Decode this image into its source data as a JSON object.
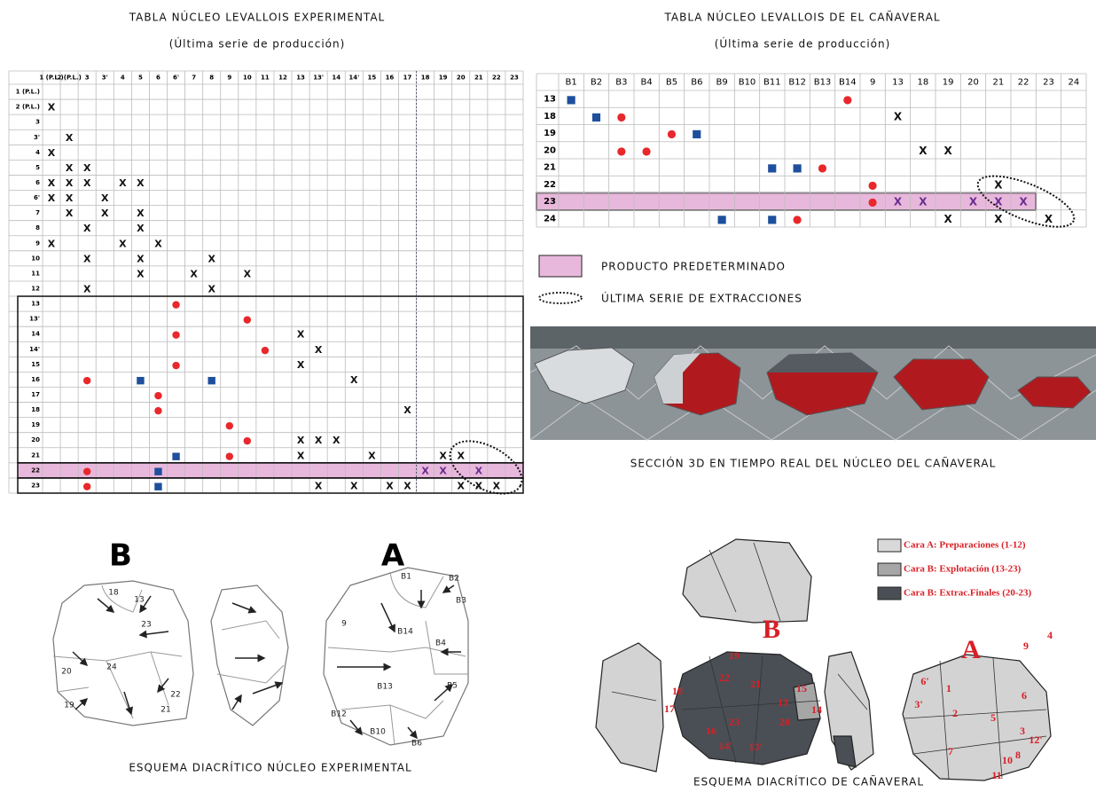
{
  "left": {
    "title": "TABLA NÚCLEO LEVALLOIS EXPERIMENTAL",
    "subtitle": "(Última serie de producción)",
    "columns": [
      "1 (P.L.)",
      "2 (P.L.)",
      "3",
      "3'",
      "4",
      "5",
      "6",
      "6'",
      "7",
      "8",
      "9",
      "10",
      "11",
      "12",
      "13",
      "13'",
      "14",
      "14'",
      "15",
      "16",
      "17",
      "18",
      "19",
      "20",
      "21",
      "22",
      "23"
    ],
    "rows": [
      {
        "label": "1 (P.L.)",
        "cells": [
          null,
          null,
          null,
          null,
          null,
          null,
          null,
          null,
          null,
          null,
          null,
          null,
          null,
          null,
          null,
          null,
          null,
          null,
          null,
          null,
          null,
          null,
          null,
          null,
          null,
          null,
          null
        ]
      },
      {
        "label": "2 (P.L.)",
        "cells": [
          "X",
          null,
          null,
          null,
          null,
          null,
          null,
          null,
          null,
          null,
          null,
          null,
          null,
          null,
          null,
          null,
          null,
          null,
          null,
          null,
          null,
          null,
          null,
          null,
          null,
          null,
          null
        ]
      },
      {
        "label": "3",
        "cells": [
          null,
          null,
          null,
          null,
          null,
          null,
          null,
          null,
          null,
          null,
          null,
          null,
          null,
          null,
          null,
          null,
          null,
          null,
          null,
          null,
          null,
          null,
          null,
          null,
          null,
          null,
          null
        ]
      },
      {
        "label": "3'",
        "cells": [
          null,
          "X",
          null,
          null,
          null,
          null,
          null,
          null,
          null,
          null,
          null,
          null,
          null,
          null,
          null,
          null,
          null,
          null,
          null,
          null,
          null,
          null,
          null,
          null,
          null,
          null,
          null
        ]
      },
      {
        "label": "4",
        "cells": [
          "X",
          null,
          null,
          null,
          null,
          null,
          null,
          null,
          null,
          null,
          null,
          null,
          null,
          null,
          null,
          null,
          null,
          null,
          null,
          null,
          null,
          null,
          null,
          null,
          null,
          null,
          null
        ]
      },
      {
        "label": "5",
        "cells": [
          null,
          "X",
          "X",
          null,
          null,
          null,
          null,
          null,
          null,
          null,
          null,
          null,
          null,
          null,
          null,
          null,
          null,
          null,
          null,
          null,
          null,
          null,
          null,
          null,
          null,
          null,
          null
        ]
      },
      {
        "label": "6",
        "cells": [
          "X",
          "X",
          "X",
          null,
          "X",
          "X",
          null,
          null,
          null,
          null,
          null,
          null,
          null,
          null,
          null,
          null,
          null,
          null,
          null,
          null,
          null,
          null,
          null,
          null,
          null,
          null,
          null
        ]
      },
      {
        "label": "6'",
        "cells": [
          "X",
          "X",
          null,
          "X",
          null,
          null,
          null,
          null,
          null,
          null,
          null,
          null,
          null,
          null,
          null,
          null,
          null,
          null,
          null,
          null,
          null,
          null,
          null,
          null,
          null,
          null,
          null
        ]
      },
      {
        "label": "7",
        "cells": [
          null,
          "X",
          null,
          "X",
          null,
          "X",
          null,
          null,
          null,
          null,
          null,
          null,
          null,
          null,
          null,
          null,
          null,
          null,
          null,
          null,
          null,
          null,
          null,
          null,
          null,
          null,
          null
        ]
      },
      {
        "label": "8",
        "cells": [
          null,
          null,
          "X",
          null,
          null,
          "X",
          null,
          null,
          null,
          null,
          null,
          null,
          null,
          null,
          null,
          null,
          null,
          null,
          null,
          null,
          null,
          null,
          null,
          null,
          null,
          null,
          null
        ]
      },
      {
        "label": "9",
        "cells": [
          "X",
          null,
          null,
          null,
          "X",
          null,
          "X",
          null,
          null,
          null,
          null,
          null,
          null,
          null,
          null,
          null,
          null,
          null,
          null,
          null,
          null,
          null,
          null,
          null,
          null,
          null,
          null
        ]
      },
      {
        "label": "10",
        "cells": [
          null,
          null,
          "X",
          null,
          null,
          "X",
          null,
          null,
          null,
          "X",
          null,
          null,
          null,
          null,
          null,
          null,
          null,
          null,
          null,
          null,
          null,
          null,
          null,
          null,
          null,
          null,
          null
        ]
      },
      {
        "label": "11",
        "cells": [
          null,
          null,
          null,
          null,
          null,
          "X",
          null,
          null,
          "X",
          null,
          null,
          "X",
          null,
          null,
          null,
          null,
          null,
          null,
          null,
          null,
          null,
          null,
          null,
          null,
          null,
          null,
          null
        ]
      },
      {
        "label": "12",
        "cells": [
          null,
          null,
          "X",
          null,
          null,
          null,
          null,
          null,
          null,
          "X",
          null,
          null,
          null,
          null,
          null,
          null,
          null,
          null,
          null,
          null,
          null,
          null,
          null,
          null,
          null,
          null,
          null
        ]
      },
      {
        "label": "13",
        "cells": [
          null,
          null,
          null,
          null,
          null,
          null,
          null,
          "●",
          null,
          null,
          null,
          null,
          null,
          null,
          null,
          null,
          null,
          null,
          null,
          null,
          null,
          null,
          null,
          null,
          null,
          null,
          null
        ]
      },
      {
        "label": "13'",
        "cells": [
          null,
          null,
          null,
          null,
          null,
          null,
          null,
          null,
          null,
          null,
          null,
          "●",
          null,
          null,
          null,
          null,
          null,
          null,
          null,
          null,
          null,
          null,
          null,
          null,
          null,
          null,
          null
        ]
      },
      {
        "label": "14",
        "cells": [
          null,
          null,
          null,
          null,
          null,
          null,
          null,
          "●",
          null,
          null,
          null,
          null,
          null,
          null,
          "X",
          null,
          null,
          null,
          null,
          null,
          null,
          null,
          null,
          null,
          null,
          null,
          null
        ]
      },
      {
        "label": "14'",
        "cells": [
          null,
          null,
          null,
          null,
          null,
          null,
          null,
          null,
          null,
          null,
          null,
          null,
          "●",
          null,
          null,
          "X",
          null,
          null,
          null,
          null,
          null,
          null,
          null,
          null,
          null,
          null,
          null
        ]
      },
      {
        "label": "15",
        "cells": [
          null,
          null,
          null,
          null,
          null,
          null,
          null,
          "●",
          null,
          null,
          null,
          null,
          null,
          null,
          "X",
          null,
          null,
          null,
          null,
          null,
          null,
          null,
          null,
          null,
          null,
          null,
          null
        ]
      },
      {
        "label": "16",
        "cells": [
          null,
          null,
          "●",
          null,
          null,
          "■",
          null,
          null,
          null,
          "■",
          null,
          null,
          null,
          null,
          null,
          null,
          null,
          "X",
          null,
          null,
          null,
          null,
          null,
          null,
          null,
          null,
          null
        ]
      },
      {
        "label": "17",
        "cells": [
          null,
          null,
          null,
          null,
          null,
          null,
          "●",
          null,
          null,
          null,
          null,
          null,
          null,
          null,
          null,
          null,
          null,
          null,
          null,
          null,
          null,
          null,
          null,
          null,
          null,
          null,
          null
        ]
      },
      {
        "label": "18",
        "cells": [
          null,
          null,
          null,
          null,
          null,
          null,
          "●",
          null,
          null,
          null,
          null,
          null,
          null,
          null,
          null,
          null,
          null,
          null,
          null,
          null,
          "X",
          null,
          null,
          null,
          null,
          null,
          null
        ]
      },
      {
        "label": "19",
        "cells": [
          null,
          null,
          null,
          null,
          null,
          null,
          null,
          null,
          null,
          null,
          "●",
          null,
          null,
          null,
          null,
          null,
          null,
          null,
          null,
          null,
          null,
          null,
          null,
          null,
          null,
          null,
          null
        ]
      },
      {
        "label": "20",
        "cells": [
          null,
          null,
          null,
          null,
          null,
          null,
          null,
          null,
          null,
          null,
          null,
          "●",
          null,
          null,
          "X",
          "X",
          "X",
          null,
          null,
          null,
          null,
          null,
          null,
          null,
          null,
          null,
          null
        ]
      },
      {
        "label": "21",
        "cells": [
          null,
          null,
          null,
          null,
          null,
          null,
          null,
          "■",
          null,
          null,
          "●",
          null,
          null,
          null,
          "X",
          null,
          null,
          null,
          "X",
          null,
          null,
          null,
          "X",
          "X",
          null,
          null,
          null
        ]
      },
      {
        "label": "22",
        "cells": [
          null,
          null,
          "●",
          null,
          null,
          null,
          "■",
          null,
          null,
          null,
          null,
          null,
          null,
          null,
          null,
          null,
          null,
          null,
          null,
          null,
          null,
          "X",
          "X",
          null,
          "X",
          null,
          null
        ]
      },
      {
        "label": "23",
        "cells": [
          null,
          null,
          "●",
          null,
          null,
          null,
          "■",
          null,
          null,
          null,
          null,
          null,
          null,
          null,
          null,
          "X",
          null,
          "X",
          null,
          "X",
          "X",
          null,
          null,
          "X",
          "X",
          "X",
          null
        ]
      }
    ]
  },
  "right": {
    "title": "TABLA NÚCLEO LEVALLOIS DE EL CAÑAVERAL",
    "subtitle": "(Última serie de producción)",
    "columns": [
      "B1",
      "B2",
      "B3",
      "B4",
      "B5",
      "B6",
      "B9",
      "B10",
      "B11",
      "B12",
      "B13",
      "B14",
      "9",
      "13",
      "18",
      "19",
      "20",
      "21",
      "22",
      "23",
      "24"
    ],
    "rows": [
      {
        "label": "13",
        "cells": [
          "■",
          null,
          null,
          null,
          null,
          null,
          null,
          null,
          null,
          null,
          null,
          "●",
          null,
          null,
          null,
          null,
          null,
          null,
          null,
          null,
          null
        ]
      },
      {
        "label": "18",
        "cells": [
          null,
          "■",
          "●",
          null,
          null,
          null,
          null,
          null,
          null,
          null,
          null,
          null,
          null,
          "X",
          null,
          null,
          null,
          null,
          null,
          null,
          null
        ]
      },
      {
        "label": "19",
        "cells": [
          null,
          null,
          null,
          null,
          "●",
          "■",
          null,
          null,
          null,
          null,
          null,
          null,
          null,
          null,
          null,
          null,
          null,
          null,
          null,
          null,
          null
        ]
      },
      {
        "label": "20",
        "cells": [
          null,
          null,
          "●",
          "●",
          null,
          null,
          null,
          null,
          null,
          null,
          null,
          null,
          null,
          null,
          "X",
          "X",
          null,
          null,
          null,
          null,
          null
        ]
      },
      {
        "label": "21",
        "cells": [
          null,
          null,
          null,
          null,
          null,
          null,
          null,
          null,
          "■",
          "■",
          "●",
          null,
          null,
          null,
          null,
          null,
          null,
          null,
          null,
          null,
          null
        ]
      },
      {
        "label": "22",
        "cells": [
          null,
          null,
          null,
          null,
          null,
          null,
          null,
          null,
          null,
          null,
          null,
          null,
          "●",
          null,
          null,
          null,
          null,
          "X",
          null,
          null,
          null
        ]
      },
      {
        "label": "23",
        "cells": [
          null,
          null,
          null,
          null,
          null,
          null,
          null,
          null,
          null,
          null,
          null,
          null,
          "●",
          "X",
          "X",
          null,
          "X",
          "X",
          "X",
          null,
          null
        ]
      },
      {
        "label": "24",
        "cells": [
          null,
          null,
          null,
          null,
          null,
          null,
          "■",
          null,
          "■",
          "●",
          null,
          null,
          null,
          null,
          null,
          "X",
          null,
          "X",
          null,
          "X",
          null
        ]
      }
    ]
  },
  "symbol_colors": {
    "●": "#e8282b",
    "■": "#1d4f9c"
  },
  "legend": [
    "PRODUCTO PREDETERMINADO",
    "ÚLTIMA SERIE DE EXTRACCIONES"
  ],
  "section_caption": "SECCIÓN 3D EN TIEMPO REAL DEL NÚCLEO DEL CAÑAVERAL",
  "experimental_scheme": {
    "face_b": "B",
    "face_a": "A",
    "b_labels": [
      "18",
      "13",
      "23",
      "20",
      "24",
      "19",
      "22",
      "21"
    ],
    "a_labels": [
      "B1",
      "B2",
      "B3",
      "9",
      "B14",
      "B4",
      "B13",
      "B5",
      "B12",
      "B10",
      "B6"
    ],
    "caption": "ESQUEMA DIACRÍTICO NÚCLEO EXPERIMENTAL"
  },
  "canaveral_scheme": {
    "face_b": "B",
    "face_a": "A",
    "legend": [
      "Cara A: Preparaciones (1-12)",
      "Cara B: Explotación (13-23)",
      "Cara B: Extrac.Finales (20-23)"
    ],
    "legend_colors": [
      "#d9d9d9",
      "#a6a6a6",
      "#4a4f55"
    ],
    "b_labels": [
      "19",
      "22",
      "21",
      "18",
      "17",
      "23",
      "13",
      "15",
      "14",
      "20",
      "16",
      "14'",
      "13'"
    ],
    "a_labels": [
      "4",
      "9",
      "6'",
      "1",
      "6",
      "3'",
      "2",
      "5",
      "3",
      "7",
      "12'",
      "8",
      "10",
      "11"
    ],
    "caption": "ESQUEMA DIACRÍTICO DE CAÑAVERAL"
  }
}
